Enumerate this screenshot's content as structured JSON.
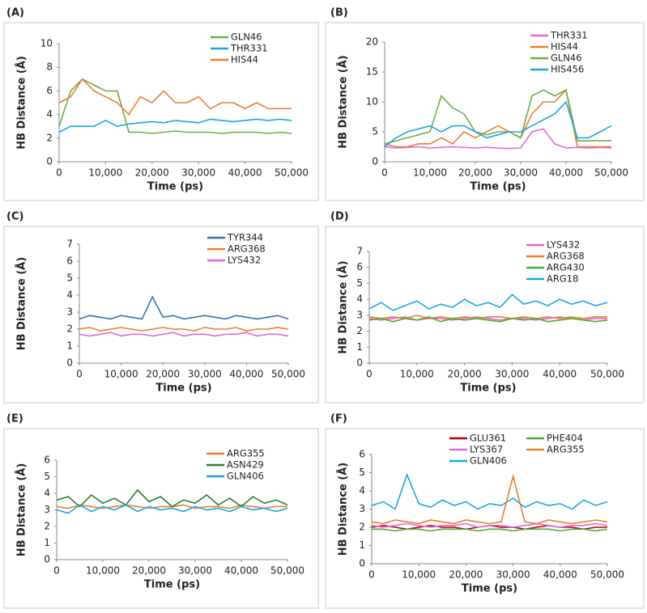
{
  "chart_data": [
    {
      "type": "line",
      "label": "(A)",
      "xlabel": "Time (ps)",
      "ylabel": "HB Distance (Å)",
      "x": [
        0,
        2500,
        5000,
        7500,
        10000,
        12500,
        15000,
        17500,
        20000,
        22500,
        25000,
        27500,
        30000,
        32500,
        35000,
        37500,
        40000,
        42500,
        45000,
        47500,
        50000
      ],
      "xlim": [
        0,
        50000
      ],
      "xticks": [
        0,
        {
          "value": 10000,
          "label": "10,000"
        },
        {
          "value": 20000,
          "label": "20,000"
        },
        {
          "value": 30000,
          "label": "30,000"
        },
        {
          "value": 40000,
          "label": "40,000"
        },
        {
          "value": 50000,
          "label": "50,000"
        }
      ],
      "ylim": [
        0,
        10
      ],
      "yticks": [
        0,
        2,
        4,
        6,
        8,
        10
      ],
      "series": [
        {
          "name": "GLN46",
          "color": "#70ad47",
          "values": [
            3,
            6,
            7,
            6.5,
            6,
            6,
            2.5,
            2.5,
            2.4,
            2.5,
            2.6,
            2.5,
            2.5,
            2.5,
            2.4,
            2.5,
            2.5,
            2.5,
            2.4,
            2.5,
            2.4
          ]
        },
        {
          "name": "THR331",
          "color": "#1ca7e0",
          "values": [
            2.5,
            3,
            3,
            3,
            3.5,
            3,
            3.2,
            3.3,
            3.4,
            3.3,
            3.5,
            3.4,
            3.3,
            3.6,
            3.5,
            3.4,
            3.5,
            3.6,
            3.5,
            3.6,
            3.5
          ]
        },
        {
          "name": "HIS44",
          "color": "#ed7d31",
          "values": [
            5,
            5.5,
            7,
            6,
            5.5,
            5,
            4,
            5.5,
            5,
            6,
            5,
            5,
            5.5,
            4.5,
            5,
            5,
            4.5,
            5,
            4.5,
            4.5,
            4.5
          ]
        }
      ]
    },
    {
      "type": "line",
      "label": "(B)",
      "xlabel": "Time (ps)",
      "ylabel": "HB Distance (Å)",
      "x": [
        0,
        2500,
        5000,
        7500,
        10000,
        12500,
        15000,
        17500,
        20000,
        22500,
        25000,
        27500,
        30000,
        32500,
        35000,
        37500,
        40000,
        42500,
        45000,
        47500,
        50000
      ],
      "xlim": [
        0,
        50000
      ],
      "xticks": [
        0,
        {
          "value": 10000,
          "label": "10,000"
        },
        {
          "value": 20000,
          "label": "20,000"
        },
        {
          "value": 30000,
          "label": "30,000"
        },
        {
          "value": 40000,
          "label": "40,000"
        },
        {
          "value": 50000,
          "label": "50,000"
        }
      ],
      "ylim": [
        0,
        20
      ],
      "yticks": [
        0,
        5,
        10,
        15,
        20
      ],
      "series": [
        {
          "name": "THR331",
          "color": "#e06ad8",
          "values": [
            2.5,
            2.3,
            2.4,
            2.5,
            2.3,
            2.4,
            2.5,
            2.4,
            2.3,
            2.4,
            2.3,
            2.2,
            2.3,
            5,
            5.5,
            3,
            2.3,
            2.4,
            2.3,
            2.4,
            2.3
          ]
        },
        {
          "name": "HIS44",
          "color": "#ed7d31",
          "values": [
            3,
            2.5,
            2.5,
            3,
            3,
            4,
            3,
            5,
            4,
            5,
            6,
            5,
            4,
            8,
            10,
            10,
            12,
            2.5,
            2.5,
            2.5,
            2.5
          ]
        },
        {
          "name": "GLN46",
          "color": "#70ad47",
          "values": [
            3,
            3.5,
            4,
            4.5,
            5,
            11,
            9,
            8,
            5,
            4.5,
            5,
            5,
            4,
            11,
            12,
            11,
            12,
            3.5,
            3.5,
            3.5,
            3.5
          ]
        },
        {
          "name": "HIS456",
          "color": "#1ca7e0",
          "values": [
            2.5,
            4,
            5,
            5.5,
            6,
            5,
            6,
            6,
            5,
            4,
            4.5,
            5,
            5,
            6,
            7,
            8,
            10,
            4,
            4,
            5,
            6
          ]
        }
      ]
    },
    {
      "type": "line",
      "label": "(C)",
      "xlabel": "Time (ps)",
      "ylabel": "HB Distance (Å)",
      "x": [
        0,
        2500,
        5000,
        7500,
        10000,
        12500,
        15000,
        17500,
        20000,
        22500,
        25000,
        27500,
        30000,
        32500,
        35000,
        37500,
        40000,
        42500,
        45000,
        47500,
        50000
      ],
      "xlim": [
        0,
        50000
      ],
      "xticks": [
        0,
        {
          "value": 10000,
          "label": "10,000"
        },
        {
          "value": 20000,
          "label": "20,000"
        },
        {
          "value": 30000,
          "label": "30,000"
        },
        {
          "value": 40000,
          "label": "40,000"
        },
        {
          "value": 50000,
          "label": "50,000"
        }
      ],
      "ylim": [
        0,
        7
      ],
      "yticks": [
        0,
        1,
        2,
        3,
        4,
        5,
        6,
        7
      ],
      "series": [
        {
          "name": "TYR344",
          "color": "#2e75b6",
          "values": [
            2.6,
            2.8,
            2.7,
            2.6,
            2.8,
            2.7,
            2.6,
            3.9,
            2.7,
            2.8,
            2.6,
            2.7,
            2.8,
            2.7,
            2.6,
            2.8,
            2.7,
            2.6,
            2.7,
            2.8,
            2.6
          ]
        },
        {
          "name": "ARG368",
          "color": "#ed7d31",
          "values": [
            2.0,
            2.1,
            1.9,
            2.0,
            2.1,
            2.0,
            1.9,
            2.0,
            2.1,
            2.0,
            2.0,
            1.9,
            2.1,
            2.0,
            2.0,
            2.1,
            1.9,
            2.0,
            2.0,
            2.1,
            2.0
          ]
        },
        {
          "name": "LYS432",
          "color": "#e06ad8",
          "values": [
            1.7,
            1.6,
            1.7,
            1.8,
            1.6,
            1.7,
            1.7,
            1.6,
            1.7,
            1.8,
            1.6,
            1.7,
            1.7,
            1.6,
            1.7,
            1.7,
            1.8,
            1.6,
            1.7,
            1.7,
            1.6
          ]
        }
      ]
    },
    {
      "type": "line",
      "label": "(D)",
      "xlabel": "Time (ps)",
      "ylabel": "HB Distance (Å)",
      "x": [
        0,
        2500,
        5000,
        7500,
        10000,
        12500,
        15000,
        17500,
        20000,
        22500,
        25000,
        27500,
        30000,
        32500,
        35000,
        37500,
        40000,
        42500,
        45000,
        47500,
        50000
      ],
      "xlim": [
        0,
        50000
      ],
      "xticks": [
        0,
        {
          "value": 10000,
          "label": "10,000"
        },
        {
          "value": 20000,
          "label": "20,000"
        },
        {
          "value": 30000,
          "label": "30,000"
        },
        {
          "value": 40000,
          "label": "40,000"
        },
        {
          "value": 50000,
          "label": "50,000"
        }
      ],
      "ylim": [
        0,
        7
      ],
      "yticks": [
        0,
        1,
        2,
        3,
        4,
        5,
        6,
        7
      ],
      "series": [
        {
          "name": "LYS432",
          "color": "#e06ad8",
          "values": [
            2.8,
            2.7,
            2.8,
            2.9,
            2.7,
            2.8,
            2.8,
            2.7,
            2.8,
            2.9,
            2.8,
            2.7,
            2.8,
            2.8,
            2.7,
            2.8,
            2.9,
            2.8,
            2.7,
            2.8,
            2.8
          ]
        },
        {
          "name": "ARG368",
          "color": "#ed7d31",
          "values": [
            2.9,
            2.8,
            2.9,
            2.8,
            3.0,
            2.8,
            2.9,
            2.8,
            2.9,
            2.8,
            2.9,
            2.9,
            2.8,
            2.9,
            2.8,
            2.9,
            2.8,
            2.9,
            2.8,
            2.9,
            2.9
          ]
        },
        {
          "name": "ARG430",
          "color": "#4eab3a",
          "values": [
            2.7,
            2.8,
            2.6,
            2.8,
            2.7,
            2.9,
            2.6,
            2.8,
            2.7,
            2.8,
            2.7,
            2.6,
            2.8,
            2.7,
            2.8,
            2.6,
            2.7,
            2.8,
            2.7,
            2.6,
            2.7
          ]
        },
        {
          "name": "ARG18",
          "color": "#1ca7e0",
          "values": [
            3.4,
            3.8,
            3.3,
            3.6,
            3.9,
            3.4,
            3.7,
            3.5,
            4.0,
            3.6,
            3.8,
            3.5,
            4.3,
            3.7,
            3.9,
            3.6,
            4.0,
            3.7,
            3.9,
            3.6,
            3.8
          ]
        }
      ]
    },
    {
      "type": "line",
      "label": "(E)",
      "xlabel": "Time (ps)",
      "ylabel": "HB Distance (Å)",
      "x": [
        0,
        2500,
        5000,
        7500,
        10000,
        12500,
        15000,
        17500,
        20000,
        22500,
        25000,
        27500,
        30000,
        32500,
        35000,
        37500,
        40000,
        42500,
        45000,
        47500,
        50000
      ],
      "xlim": [
        0,
        50000
      ],
      "xticks": [
        0,
        {
          "value": 10000,
          "label": "10,000"
        },
        {
          "value": 20000,
          "label": "20,000"
        },
        {
          "value": 30000,
          "label": "30,000"
        },
        {
          "value": 40000,
          "label": "40,000"
        },
        {
          "value": 50000,
          "label": "50,000"
        }
      ],
      "ylim": [
        0,
        6
      ],
      "yticks": [
        0,
        1,
        2,
        3,
        4,
        5,
        6
      ],
      "series": [
        {
          "name": "ARG355",
          "color": "#ed7d31",
          "values": [
            3.2,
            3.1,
            3.3,
            3.2,
            3.1,
            3.2,
            3.3,
            3.2,
            3.1,
            3.2,
            3.2,
            3.3,
            3.1,
            3.2,
            3.2,
            3.1,
            3.3,
            3.2,
            3.1,
            3.2,
            3.2
          ]
        },
        {
          "name": "ASN429",
          "color": "#2e7d32",
          "values": [
            3.6,
            3.8,
            3.2,
            3.9,
            3.4,
            3.7,
            3.3,
            4.2,
            3.5,
            3.8,
            3.2,
            3.6,
            3.4,
            3.9,
            3.3,
            3.7,
            3.2,
            3.8,
            3.4,
            3.6,
            3.3
          ]
        },
        {
          "name": "GLN406",
          "color": "#1ca7e0",
          "values": [
            3.0,
            2.8,
            3.3,
            2.9,
            3.2,
            3.0,
            3.3,
            2.9,
            3.2,
            3.0,
            3.1,
            2.9,
            3.2,
            3.0,
            3.1,
            2.9,
            3.2,
            3.0,
            3.1,
            2.9,
            3.1
          ]
        }
      ]
    },
    {
      "type": "line",
      "label": "(F)",
      "xlabel": "Time (ps)",
      "ylabel": "HB Distance (Å)",
      "x": [
        0,
        2500,
        5000,
        7500,
        10000,
        12500,
        15000,
        17500,
        20000,
        22500,
        25000,
        27500,
        30000,
        32500,
        35000,
        37500,
        40000,
        42500,
        45000,
        47500,
        50000
      ],
      "xlim": [
        0,
        50000
      ],
      "xticks": [
        0,
        {
          "value": 10000,
          "label": "10,000"
        },
        {
          "value": 20000,
          "label": "20,000"
        },
        {
          "value": 30000,
          "label": "30,000"
        },
        {
          "value": 40000,
          "label": "40,000"
        },
        {
          "value": 50000,
          "label": "50,000"
        }
      ],
      "ylim": [
        0,
        6
      ],
      "yticks": [
        0,
        1,
        2,
        3,
        4,
        5,
        6
      ],
      "series": [
        {
          "name": "GLU361",
          "color": "#c00000",
          "values": [
            2.0,
            2.1,
            2.0,
            1.9,
            2.0,
            2.1,
            2.0,
            2.0,
            1.9,
            2.0,
            2.1,
            2.0,
            2.0,
            1.9,
            2.0,
            2.1,
            2.0,
            2.0,
            1.9,
            2.0,
            2.0
          ]
        },
        {
          "name": "LYS367",
          "color": "#e06ad8",
          "values": [
            2.1,
            2.0,
            2.1,
            2.2,
            2.1,
            2.0,
            2.1,
            2.1,
            2.2,
            2.0,
            2.1,
            2.1,
            2.0,
            2.1,
            2.2,
            2.1,
            2.0,
            2.1,
            2.1,
            2.2,
            2.1
          ]
        },
        {
          "name": "GLN406",
          "color": "#1ca7e0",
          "values": [
            3.2,
            3.4,
            3.0,
            4.9,
            3.3,
            3.1,
            3.5,
            3.2,
            3.4,
            3.0,
            3.3,
            3.2,
            3.6,
            3.1,
            3.4,
            3.2,
            3.3,
            3.0,
            3.5,
            3.2,
            3.4
          ]
        },
        {
          "name": "PHE404",
          "color": "#4eab3a",
          "values": [
            1.9,
            1.9,
            1.8,
            1.9,
            1.9,
            1.8,
            1.9,
            1.9,
            1.9,
            1.8,
            1.9,
            1.9,
            1.8,
            1.9,
            1.9,
            1.9,
            1.8,
            1.9,
            1.9,
            1.8,
            1.9
          ]
        },
        {
          "name": "ARG355",
          "color": "#ed7d31",
          "values": [
            2.3,
            2.2,
            2.4,
            2.3,
            2.2,
            2.4,
            2.3,
            2.2,
            2.4,
            2.3,
            2.2,
            2.3,
            4.8,
            2.3,
            2.2,
            2.4,
            2.3,
            2.2,
            2.3,
            2.4,
            2.3
          ]
        }
      ]
    }
  ]
}
